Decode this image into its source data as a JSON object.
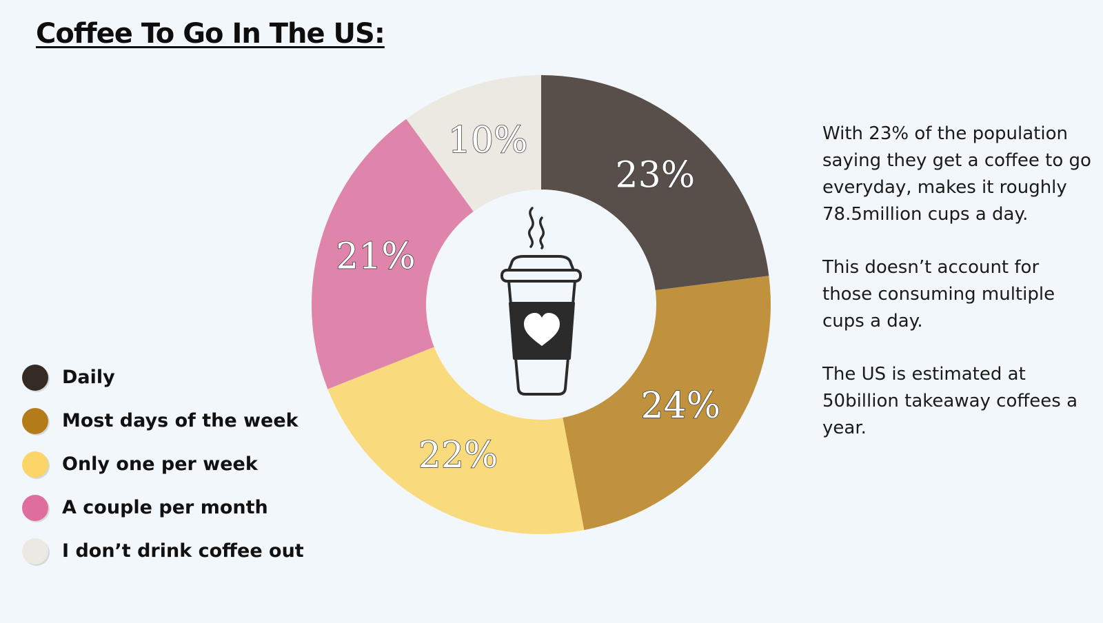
{
  "title": "Coffee To Go In The US:",
  "chart_data": {
    "type": "pie",
    "donut": true,
    "categories": [
      "Daily",
      "Most days of the week",
      "Only one per week",
      "A couple per month",
      "I don’t drink coffee out"
    ],
    "values": [
      23,
      24,
      22,
      21,
      10
    ],
    "data_labels": [
      "23%",
      "24%",
      "22%",
      "21%",
      "10%"
    ],
    "colors": [
      "#584f4a",
      "#c1923d",
      "#f9da7d",
      "#df85ab",
      "#ece8e2"
    ],
    "legend_colors": [
      "#362a24",
      "#b47c19",
      "#fbd567",
      "#df6e9e",
      "#ece8e2"
    ],
    "legend_position": "left",
    "start": "top",
    "direction": "clockwise",
    "center_icon": "coffee-cup-icon"
  },
  "notes": [
    "With 23% of the population saying they get a coffee to go everyday, makes it roughly 78.5million cups a day.",
    "This doesn’t account for those consuming multiple cups a day.",
    "The US is estimated at 50billion takeaway coffees a year."
  ]
}
